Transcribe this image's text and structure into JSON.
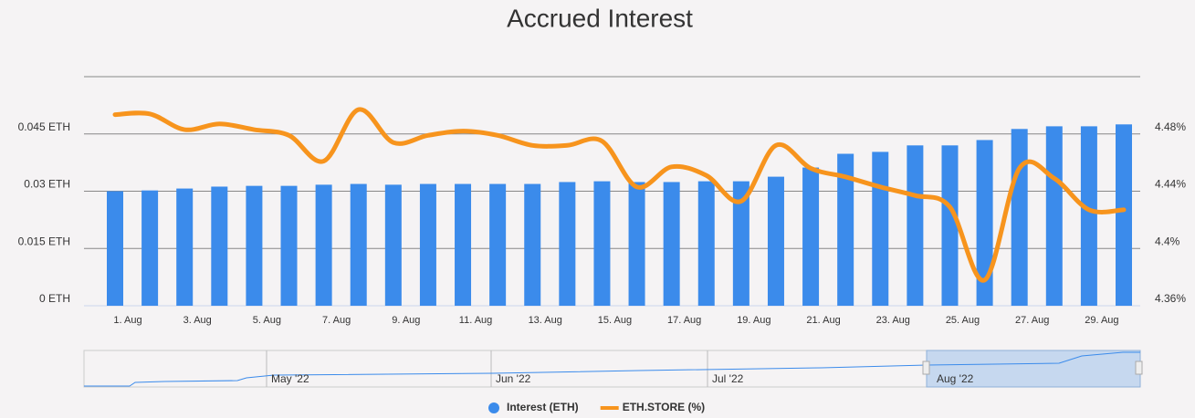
{
  "chart_data": {
    "type": "bar+line",
    "title": "Accrued Interest",
    "categories": [
      "1. Aug",
      null,
      "3. Aug",
      null,
      "5. Aug",
      null,
      "7. Aug",
      null,
      "9. Aug",
      null,
      "11. Aug",
      null,
      "13. Aug",
      null,
      "15. Aug",
      null,
      "17. Aug",
      null,
      "19. Aug",
      null,
      "21. Aug",
      null,
      "23. Aug",
      null,
      "25. Aug",
      null,
      "27. Aug",
      null,
      "29. Aug",
      null
    ],
    "series": [
      {
        "name": "Interest (ETH)",
        "color": "#3b8beb",
        "type": "bar",
        "values": [
          0.03,
          0.0302,
          0.0307,
          0.0312,
          0.0314,
          0.0314,
          0.0317,
          0.0319,
          0.0317,
          0.0319,
          0.0319,
          0.0319,
          0.0319,
          0.0324,
          0.0326,
          0.0324,
          0.0324,
          0.0326,
          0.0326,
          0.0338,
          0.0362,
          0.0398,
          0.0403,
          0.042,
          0.042,
          0.0434,
          0.0463,
          0.047,
          0.047,
          0.0475
        ]
      },
      {
        "name": "ETH.STORE (%)",
        "color": "#f7941d",
        "type": "line",
        "axis": "y2",
        "values": [
          4.4935,
          4.494,
          4.483,
          4.487,
          4.483,
          4.479,
          4.461,
          4.497,
          4.474,
          4.479,
          4.482,
          4.479,
          4.472,
          4.472,
          4.475,
          4.443,
          4.457,
          4.451,
          4.433,
          4.472,
          4.456,
          4.45,
          4.443,
          4.437,
          4.429,
          4.378,
          4.456,
          4.449,
          4.427,
          4.427
        ]
      }
    ],
    "ylim": [
      0,
      0.06
    ],
    "yticks": [
      {
        "value": 0,
        "label": "0 ETH"
      },
      {
        "value": 0.015,
        "label": "0.015 ETH"
      },
      {
        "value": 0.03,
        "label": "0.03 ETH"
      },
      {
        "value": 0.045,
        "label": "0.045 ETH"
      }
    ],
    "y2lim": [
      4.36,
      4.52
    ],
    "y2ticks": [
      {
        "value": 4.36,
        "label": "4.36%"
      },
      {
        "value": 4.4,
        "label": "4.4%"
      },
      {
        "value": 4.44,
        "label": "4.44%"
      },
      {
        "value": 4.48,
        "label": "4.48%"
      }
    ],
    "grid": true,
    "navigator_labels": [
      "May '22",
      "Jun '22",
      "Jul '22",
      "Aug '22"
    ],
    "legend": "bottom"
  }
}
